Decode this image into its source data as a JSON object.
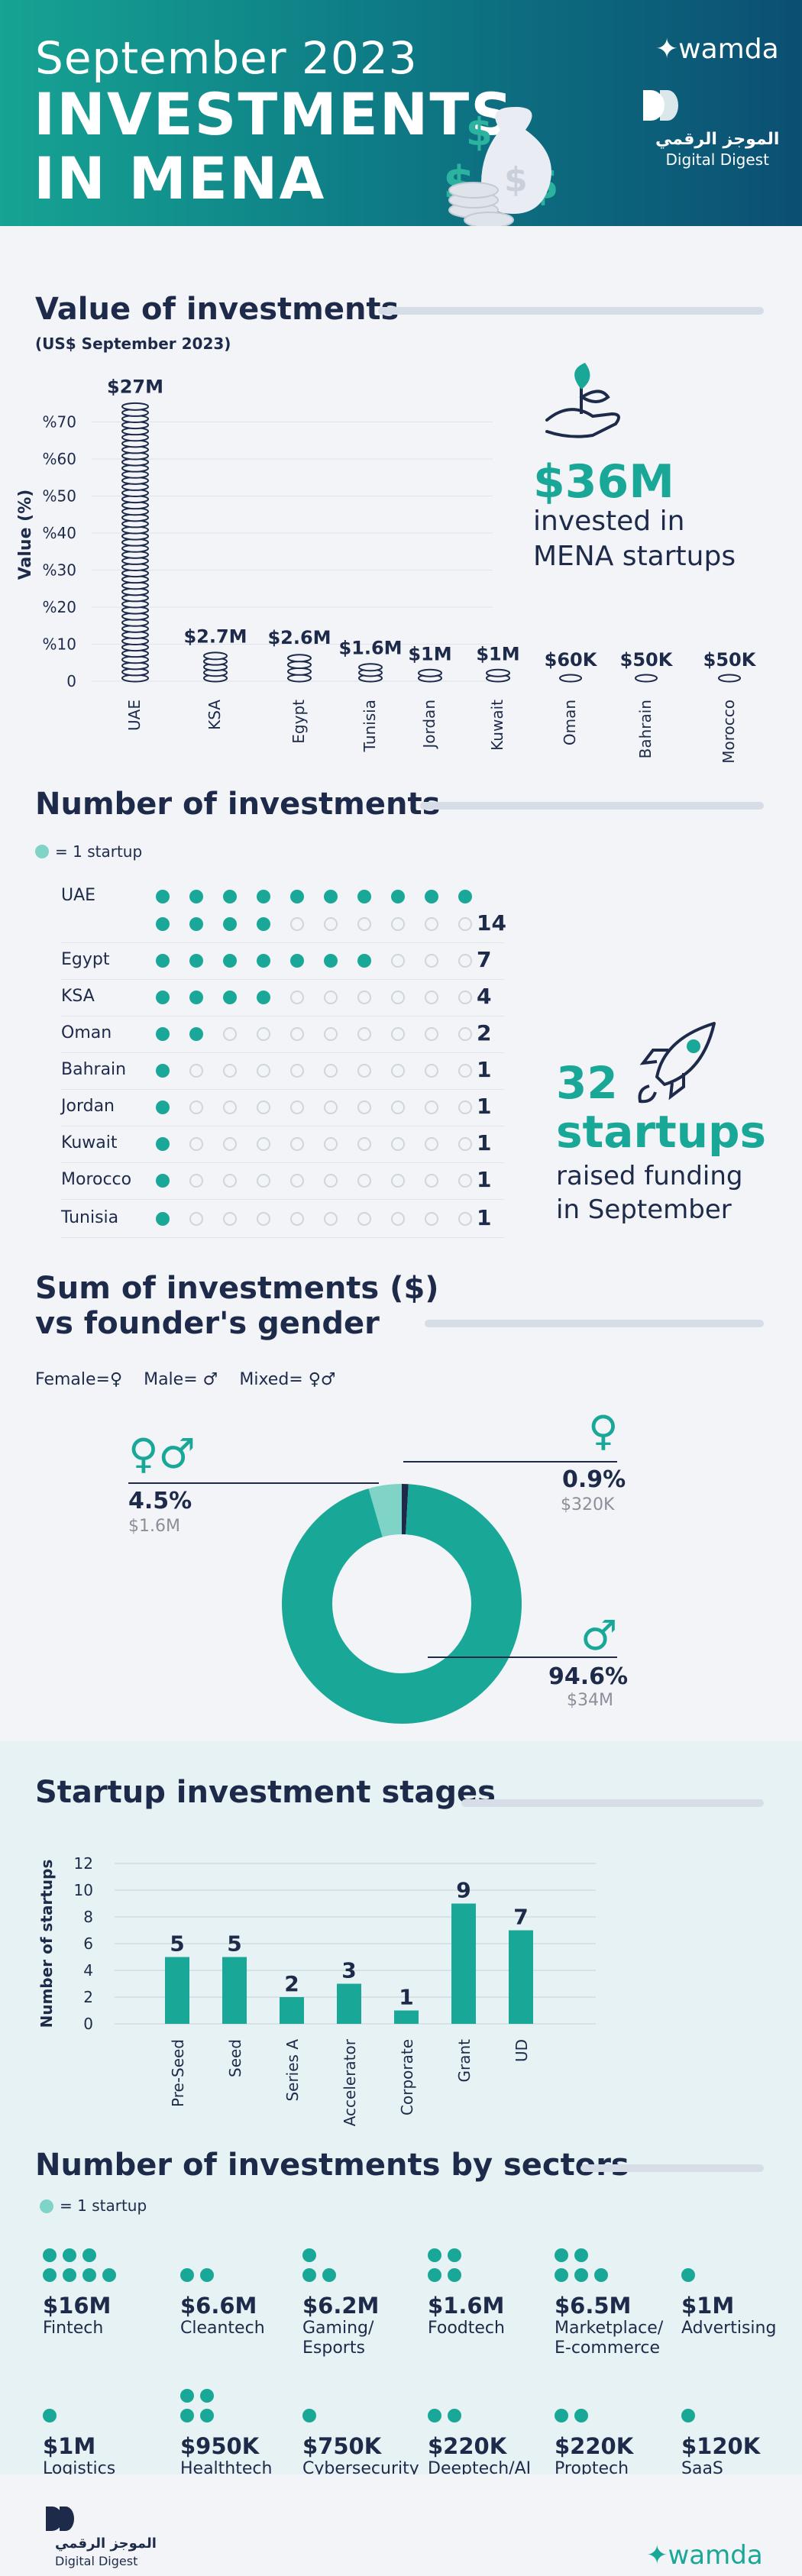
{
  "header": {
    "subtitle": "September 2023",
    "title_line1": "INVESTMENTS",
    "title_line2": "IN MENA",
    "brand": "wamda",
    "dd_arabic": "الموجز الرقمي",
    "dd_english": "Digital Digest"
  },
  "value_section": {
    "title": "Value of investments",
    "subtitle": "(US$ September 2023)",
    "ylabel": "Value (%)",
    "callout_value": "$36M",
    "callout_text1": "invested in",
    "callout_text2": "MENA startups"
  },
  "number_section": {
    "title": "Number of investments",
    "legend": "= 1 startup",
    "callout_value1": "32",
    "callout_value2": "startups",
    "callout_text1": "raised funding",
    "callout_text2": "in September"
  },
  "gender_section": {
    "title_line1": "Sum of investments ($)",
    "title_line2": "vs founder's gender",
    "legend_female": "Female=",
    "legend_male": "Male=",
    "legend_mixed": "Mixed=",
    "mixed_pct": "4.5%",
    "mixed_amount": "$1.6M",
    "female_pct": "0.9%",
    "female_amount": "$320K",
    "male_pct": "94.6%",
    "male_amount": "$34M"
  },
  "stages_section": {
    "title": "Startup investment stages",
    "ylabel": "Number of startups"
  },
  "sectors_section": {
    "title": "Number of investments by sectors",
    "legend": "= 1 startup",
    "items": [
      {
        "value": "$16M",
        "name1": "Fintech",
        "name2": "",
        "count": 7
      },
      {
        "value": "$6.6M",
        "name1": "Cleantech",
        "name2": "",
        "count": 2
      },
      {
        "value": "$6.2M",
        "name1": "Gaming/",
        "name2": "Esports",
        "count": 3
      },
      {
        "value": "$1.6M",
        "name1": "Foodtech",
        "name2": "",
        "count": 4
      },
      {
        "value": "$6.5M",
        "name1": "Marketplace/",
        "name2": "E-commerce",
        "count": 5
      },
      {
        "value": "$1M",
        "name1": "Advertising",
        "name2": "",
        "count": 1
      },
      {
        "value": "$1M",
        "name1": "Logistics",
        "name2": "",
        "count": 1
      },
      {
        "value": "$950K",
        "name1": "Healthtech",
        "name2": "",
        "count": 4
      },
      {
        "value": "$750K",
        "name1": "Cybersecurity",
        "name2": "",
        "count": 1
      },
      {
        "value": "$220K",
        "name1": "Deeptech/AI",
        "name2": "",
        "count": 2
      },
      {
        "value": "$220K",
        "name1": "Proptech",
        "name2": "",
        "count": 2
      },
      {
        "value": "$120K",
        "name1": "SaaS",
        "name2": "",
        "count": 1
      }
    ]
  },
  "footer": {
    "dd_arabic": "الموجز الرقمي",
    "dd_english": "Digital Digest",
    "brand": "wamda"
  },
  "colors": {
    "teal": "#19a897",
    "navy": "#1e2a4a",
    "light_teal": "#7fd3c7"
  },
  "chart_data": [
    {
      "type": "bar",
      "title": "Value of investments",
      "subtitle": "(US$ September 2023)",
      "ylabel": "Value (%)",
      "categories": [
        "UAE",
        "KSA",
        "Egypt",
        "Tunisia",
        "Jordan",
        "Kuwait",
        "Oman",
        "Bahrain",
        "Morocco"
      ],
      "value_labels": [
        "$27M",
        "$2.7M",
        "$2.6M",
        "$1.6M",
        "$1M",
        "$1M",
        "$60K",
        "$50K",
        "$50K"
      ],
      "values_pct": [
        75,
        7.5,
        7.2,
        4.4,
        2.8,
        2.8,
        0.17,
        0.14,
        0.14
      ],
      "yticks": [
        "0",
        "%10",
        "%20",
        "%30",
        "%40",
        "%50",
        "%60",
        "%70"
      ],
      "ylim": [
        0,
        80
      ]
    },
    {
      "type": "table",
      "title": "Number of investments",
      "categories": [
        "UAE",
        "Egypt",
        "KSA",
        "Oman",
        "Bahrain",
        "Jordan",
        "Kuwait",
        "Morocco",
        "Tunisia"
      ],
      "values": [
        14,
        7,
        4,
        2,
        1,
        1,
        1,
        1,
        1
      ]
    },
    {
      "type": "pie",
      "title": "Sum of investments ($) vs founder's gender",
      "categories": [
        "Male",
        "Mixed",
        "Female"
      ],
      "values": [
        94.6,
        4.5,
        0.9
      ],
      "amounts": [
        "$34M",
        "$1.6M",
        "$320K"
      ],
      "colors": [
        "#19a897",
        "#7fd3c7",
        "#1e2a4a"
      ]
    },
    {
      "type": "bar",
      "title": "Startup investment stages",
      "ylabel": "Number of startups",
      "categories": [
        "Pre-Seed",
        "Seed",
        "Series A",
        "Accelerator",
        "Corporate",
        "Grant",
        "UD"
      ],
      "values": [
        5,
        5,
        2,
        3,
        1,
        9,
        7
      ],
      "yticks": [
        "0",
        "2",
        "4",
        "6",
        "8",
        "10",
        "12"
      ],
      "ylim": [
        0,
        12
      ]
    }
  ]
}
